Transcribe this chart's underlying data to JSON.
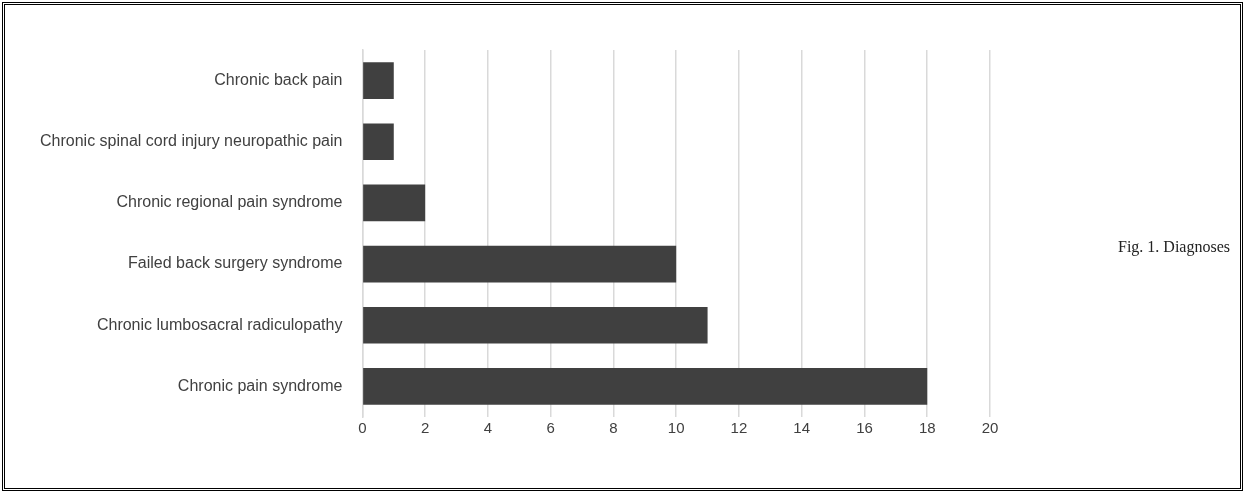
{
  "chart_data": {
    "type": "bar",
    "orientation": "horizontal",
    "categories": [
      "Chronic back pain",
      "Chronic spinal cord injury neuropathic pain",
      "Chronic regional pain syndrome",
      "Failed back surgery syndrome",
      "Chronic lumbosacral radiculopathy",
      "Chronic pain syndrome"
    ],
    "values": [
      1,
      1,
      2,
      10,
      11,
      18
    ],
    "color": "#404040",
    "xlim": [
      0,
      20
    ],
    "xticks": [
      0,
      2,
      4,
      6,
      8,
      10,
      12,
      14,
      16,
      18,
      20
    ],
    "grid": "x",
    "legend": false,
    "annotations": [
      "Fig. 1. Diagnoses"
    ]
  }
}
